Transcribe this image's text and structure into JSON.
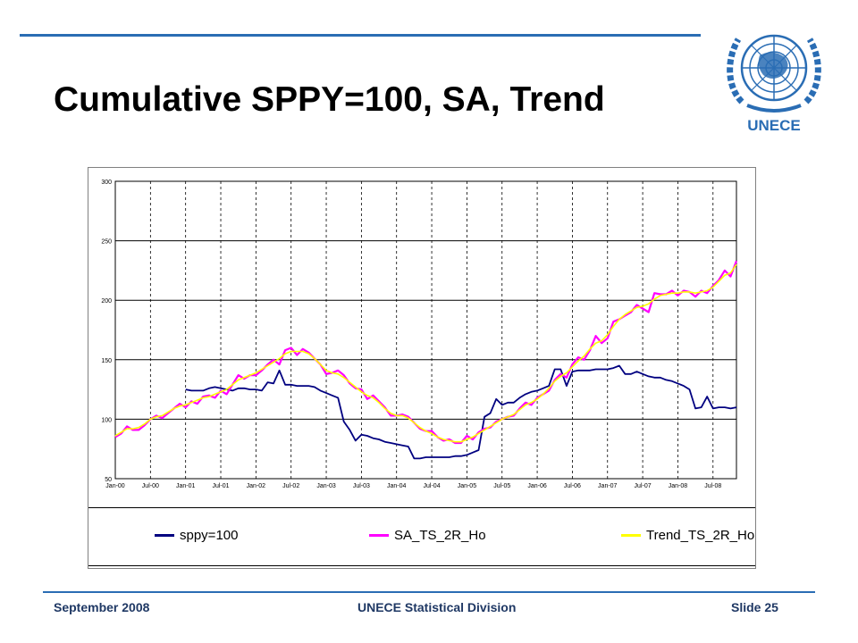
{
  "slide": {
    "title": "Cumulative SPPY=100, SA, Trend",
    "logo_text": "UNECE",
    "footer_left": "September 2008",
    "footer_center": "UNECE Statistical Division",
    "footer_right": "Slide 25",
    "accent_color": "#2a6db4"
  },
  "chart_data": {
    "type": "line",
    "title": "",
    "xlabel": "",
    "ylabel": "",
    "ylim": [
      50,
      300
    ],
    "yticks": [
      "50",
      "100",
      "150",
      "200",
      "250",
      "300"
    ],
    "xtick_labels": [
      "Jan-00",
      "Jul-00",
      "Jan-01",
      "Jul-01",
      "Jan-02",
      "Jul-02",
      "Jan-03",
      "Jul-03",
      "Jan-04",
      "Jul-04",
      "Jan-05",
      "Jul-05",
      "Jan-06",
      "Jul-06",
      "Jan-07",
      "Jul-07",
      "Jan-08",
      "Jul-08"
    ],
    "grid": {
      "horizontal": "solid",
      "vertical": "dashed"
    },
    "legend_position": "bottom",
    "series": [
      {
        "name": "sppy=100",
        "color": "#000080",
        "points": [
          [
            12,
            125
          ],
          [
            13,
            124
          ],
          [
            14,
            124
          ],
          [
            15,
            124
          ],
          [
            16,
            126
          ],
          [
            17,
            127
          ],
          [
            18,
            126
          ],
          [
            19,
            125
          ],
          [
            20,
            124
          ],
          [
            21,
            126
          ],
          [
            22,
            126
          ],
          [
            23,
            125
          ],
          [
            24,
            125
          ],
          [
            25,
            124
          ],
          [
            26,
            131
          ],
          [
            27,
            130
          ],
          [
            28,
            141
          ],
          [
            29,
            129
          ],
          [
            30,
            129
          ],
          [
            31,
            128
          ],
          [
            32,
            128
          ],
          [
            33,
            128
          ],
          [
            34,
            127
          ],
          [
            35,
            124
          ],
          [
            36,
            122
          ],
          [
            37,
            120
          ],
          [
            38,
            118
          ],
          [
            39,
            98
          ],
          [
            40,
            91
          ],
          [
            41,
            82
          ],
          [
            42,
            87
          ],
          [
            43,
            86
          ],
          [
            44,
            84
          ],
          [
            45,
            83
          ],
          [
            46,
            81
          ],
          [
            47,
            80
          ],
          [
            48,
            79
          ],
          [
            49,
            78
          ],
          [
            50,
            77
          ],
          [
            51,
            67
          ],
          [
            52,
            67
          ],
          [
            53,
            68
          ],
          [
            54,
            68
          ],
          [
            55,
            68
          ],
          [
            56,
            68
          ],
          [
            57,
            68
          ],
          [
            58,
            69
          ],
          [
            59,
            69
          ],
          [
            60,
            70
          ],
          [
            61,
            72
          ],
          [
            62,
            74
          ],
          [
            63,
            102
          ],
          [
            64,
            105
          ],
          [
            65,
            117
          ],
          [
            66,
            112
          ],
          [
            67,
            114
          ],
          [
            68,
            114
          ],
          [
            69,
            118
          ],
          [
            70,
            121
          ],
          [
            71,
            123
          ],
          [
            72,
            124
          ],
          [
            73,
            126
          ],
          [
            74,
            128
          ],
          [
            75,
            142
          ],
          [
            76,
            142
          ],
          [
            77,
            128
          ],
          [
            78,
            140
          ],
          [
            79,
            141
          ],
          [
            80,
            141
          ],
          [
            81,
            141
          ],
          [
            82,
            142
          ],
          [
            83,
            142
          ],
          [
            84,
            142
          ],
          [
            85,
            143
          ],
          [
            86,
            145
          ],
          [
            87,
            138
          ],
          [
            88,
            138
          ],
          [
            89,
            140
          ],
          [
            90,
            138
          ],
          [
            91,
            136
          ],
          [
            92,
            135
          ],
          [
            93,
            135
          ],
          [
            94,
            133
          ],
          [
            95,
            132
          ],
          [
            96,
            130
          ],
          [
            97,
            128
          ],
          [
            98,
            125
          ],
          [
            99,
            109
          ],
          [
            100,
            110
          ],
          [
            101,
            119
          ],
          [
            102,
            109
          ],
          [
            103,
            110
          ],
          [
            104,
            110
          ],
          [
            105,
            109
          ],
          [
            106,
            110
          ]
        ]
      },
      {
        "name": "SA_TS_2R_Ho",
        "color": "#ff00ff",
        "points": [
          [
            0,
            85
          ],
          [
            1,
            88
          ],
          [
            2,
            94
          ],
          [
            3,
            91
          ],
          [
            4,
            91
          ],
          [
            5,
            95
          ],
          [
            6,
            100
          ],
          [
            7,
            103
          ],
          [
            8,
            101
          ],
          [
            9,
            105
          ],
          [
            10,
            109
          ],
          [
            11,
            113
          ],
          [
            12,
            110
          ],
          [
            13,
            115
          ],
          [
            14,
            113
          ],
          [
            15,
            119
          ],
          [
            16,
            120
          ],
          [
            17,
            118
          ],
          [
            18,
            124
          ],
          [
            19,
            121
          ],
          [
            20,
            129
          ],
          [
            21,
            137
          ],
          [
            22,
            134
          ],
          [
            23,
            137
          ],
          [
            24,
            137
          ],
          [
            25,
            141
          ],
          [
            26,
            146
          ],
          [
            27,
            150
          ],
          [
            28,
            146
          ],
          [
            29,
            158
          ],
          [
            30,
            160
          ],
          [
            31,
            154
          ],
          [
            32,
            159
          ],
          [
            33,
            156
          ],
          [
            34,
            151
          ],
          [
            35,
            146
          ],
          [
            36,
            138
          ],
          [
            37,
            139
          ],
          [
            38,
            141
          ],
          [
            39,
            137
          ],
          [
            40,
            130
          ],
          [
            41,
            126
          ],
          [
            42,
            125
          ],
          [
            43,
            117
          ],
          [
            44,
            120
          ],
          [
            45,
            115
          ],
          [
            46,
            110
          ],
          [
            47,
            103
          ],
          [
            48,
            103
          ],
          [
            49,
            104
          ],
          [
            50,
            102
          ],
          [
            51,
            97
          ],
          [
            52,
            92
          ],
          [
            53,
            90
          ],
          [
            54,
            90
          ],
          [
            55,
            85
          ],
          [
            56,
            82
          ],
          [
            57,
            83
          ],
          [
            58,
            80
          ],
          [
            59,
            80
          ],
          [
            60,
            86
          ],
          [
            61,
            83
          ],
          [
            62,
            89
          ],
          [
            63,
            92
          ],
          [
            64,
            93
          ],
          [
            65,
            98
          ],
          [
            66,
            100
          ],
          [
            67,
            102
          ],
          [
            68,
            103
          ],
          [
            69,
            109
          ],
          [
            70,
            114
          ],
          [
            71,
            112
          ],
          [
            72,
            118
          ],
          [
            73,
            121
          ],
          [
            74,
            124
          ],
          [
            75,
            133
          ],
          [
            76,
            138
          ],
          [
            77,
            135
          ],
          [
            78,
            146
          ],
          [
            79,
            152
          ],
          [
            80,
            150
          ],
          [
            81,
            158
          ],
          [
            82,
            170
          ],
          [
            83,
            164
          ],
          [
            84,
            168
          ],
          [
            85,
            182
          ],
          [
            86,
            184
          ],
          [
            87,
            187
          ],
          [
            88,
            190
          ],
          [
            89,
            196
          ],
          [
            90,
            193
          ],
          [
            91,
            190
          ],
          [
            92,
            206
          ],
          [
            93,
            205
          ],
          [
            94,
            205
          ],
          [
            95,
            208
          ],
          [
            96,
            204
          ],
          [
            97,
            208
          ],
          [
            98,
            207
          ],
          [
            99,
            203
          ],
          [
            100,
            208
          ],
          [
            101,
            206
          ],
          [
            102,
            212
          ],
          [
            103,
            217
          ],
          [
            104,
            225
          ],
          [
            105,
            220
          ],
          [
            106,
            233
          ]
        ]
      },
      {
        "name": "Trend_TS_2R_Ho",
        "color": "#ffff00",
        "points": [
          [
            0,
            86
          ],
          [
            1,
            89
          ],
          [
            2,
            92
          ],
          [
            3,
            92
          ],
          [
            4,
            93
          ],
          [
            5,
            96
          ],
          [
            6,
            100
          ],
          [
            7,
            102
          ],
          [
            8,
            103
          ],
          [
            9,
            106
          ],
          [
            10,
            109
          ],
          [
            11,
            111
          ],
          [
            12,
            112
          ],
          [
            13,
            114
          ],
          [
            14,
            116
          ],
          [
            15,
            118
          ],
          [
            16,
            119
          ],
          [
            17,
            121
          ],
          [
            18,
            123
          ],
          [
            19,
            125
          ],
          [
            20,
            129
          ],
          [
            21,
            133
          ],
          [
            22,
            135
          ],
          [
            23,
            137
          ],
          [
            24,
            139
          ],
          [
            25,
            142
          ],
          [
            26,
            145
          ],
          [
            27,
            148
          ],
          [
            28,
            151
          ],
          [
            29,
            155
          ],
          [
            30,
            157
          ],
          [
            31,
            157
          ],
          [
            32,
            157
          ],
          [
            33,
            155
          ],
          [
            34,
            151
          ],
          [
            35,
            146
          ],
          [
            36,
            141
          ],
          [
            37,
            139
          ],
          [
            38,
            138
          ],
          [
            39,
            135
          ],
          [
            40,
            131
          ],
          [
            41,
            127
          ],
          [
            42,
            123
          ],
          [
            43,
            120
          ],
          [
            44,
            118
          ],
          [
            45,
            114
          ],
          [
            46,
            109
          ],
          [
            47,
            105
          ],
          [
            48,
            103
          ],
          [
            49,
            103
          ],
          [
            50,
            101
          ],
          [
            51,
            97
          ],
          [
            52,
            93
          ],
          [
            53,
            90
          ],
          [
            54,
            88
          ],
          [
            55,
            85
          ],
          [
            56,
            83
          ],
          [
            57,
            82
          ],
          [
            58,
            81
          ],
          [
            59,
            81
          ],
          [
            60,
            83
          ],
          [
            61,
            85
          ],
          [
            62,
            88
          ],
          [
            63,
            91
          ],
          [
            64,
            94
          ],
          [
            65,
            97
          ],
          [
            66,
            100
          ],
          [
            67,
            102
          ],
          [
            68,
            104
          ],
          [
            69,
            108
          ],
          [
            70,
            112
          ],
          [
            71,
            114
          ],
          [
            72,
            117
          ],
          [
            73,
            121
          ],
          [
            74,
            126
          ],
          [
            75,
            132
          ],
          [
            76,
            136
          ],
          [
            77,
            139
          ],
          [
            78,
            144
          ],
          [
            79,
            149
          ],
          [
            80,
            153
          ],
          [
            81,
            159
          ],
          [
            82,
            164
          ],
          [
            83,
            166
          ],
          [
            84,
            171
          ],
          [
            85,
            178
          ],
          [
            86,
            184
          ],
          [
            87,
            188
          ],
          [
            88,
            191
          ],
          [
            89,
            194
          ],
          [
            90,
            195
          ],
          [
            91,
            197
          ],
          [
            92,
            201
          ],
          [
            93,
            204
          ],
          [
            94,
            205
          ],
          [
            95,
            206
          ],
          [
            96,
            206
          ],
          [
            97,
            207
          ],
          [
            98,
            207
          ],
          [
            99,
            206
          ],
          [
            100,
            207
          ],
          [
            101,
            208
          ],
          [
            102,
            211
          ],
          [
            103,
            216
          ],
          [
            104,
            221
          ],
          [
            105,
            223
          ],
          [
            106,
            230
          ]
        ]
      }
    ]
  }
}
